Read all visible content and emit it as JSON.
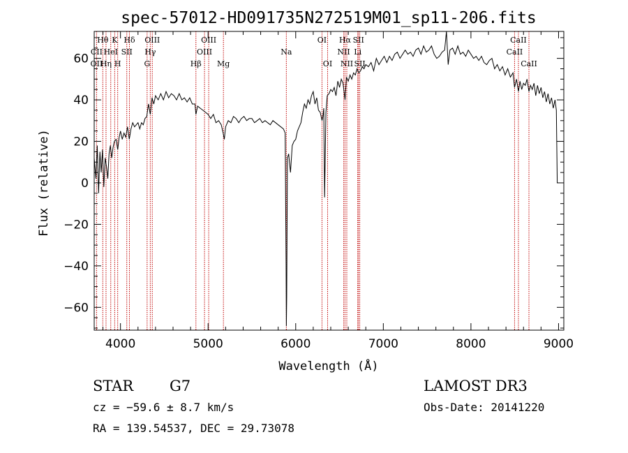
{
  "chart_data": {
    "type": "line",
    "title": "spec-57012-HD091735N272519M01_sp11-206.fits",
    "xlabel": "Wavelength (Å)",
    "ylabel": "Flux (relative)",
    "xlim": [
      3700,
      9060
    ],
    "ylim": [
      -71,
      73
    ],
    "x_ticks": [
      4000,
      5000,
      6000,
      7000,
      8000,
      9000
    ],
    "y_ticks": [
      -60,
      -40,
      -20,
      0,
      20,
      40,
      60
    ],
    "grid": false,
    "series": [
      {
        "points": [
          [
            3700,
            12
          ],
          [
            3720,
            2
          ],
          [
            3735,
            18
          ],
          [
            3750,
            -5
          ],
          [
            3765,
            15
          ],
          [
            3780,
            5
          ],
          [
            3795,
            16
          ],
          [
            3810,
            -2
          ],
          [
            3825,
            12
          ],
          [
            3840,
            8
          ],
          [
            3855,
            2
          ],
          [
            3870,
            14
          ],
          [
            3885,
            18
          ],
          [
            3900,
            12
          ],
          [
            3915,
            17
          ],
          [
            3930,
            20
          ],
          [
            3950,
            21
          ],
          [
            3968,
            16
          ],
          [
            3985,
            22
          ],
          [
            4000,
            25
          ],
          [
            4020,
            21
          ],
          [
            4040,
            24
          ],
          [
            4060,
            22
          ],
          [
            4080,
            27
          ],
          [
            4101,
            21
          ],
          [
            4120,
            26
          ],
          [
            4140,
            29
          ],
          [
            4160,
            27
          ],
          [
            4180,
            28
          ],
          [
            4200,
            29
          ],
          [
            4220,
            26
          ],
          [
            4240,
            29
          ],
          [
            4260,
            28
          ],
          [
            4280,
            31
          ],
          [
            4300,
            32
          ],
          [
            4320,
            38
          ],
          [
            4340,
            33
          ],
          [
            4360,
            41
          ],
          [
            4380,
            38
          ],
          [
            4400,
            42
          ],
          [
            4430,
            40
          ],
          [
            4460,
            43
          ],
          [
            4490,
            40
          ],
          [
            4520,
            44
          ],
          [
            4550,
            41
          ],
          [
            4580,
            43
          ],
          [
            4610,
            42
          ],
          [
            4640,
            40
          ],
          [
            4670,
            43
          ],
          [
            4700,
            40
          ],
          [
            4730,
            41
          ],
          [
            4760,
            39
          ],
          [
            4790,
            41
          ],
          [
            4820,
            38
          ],
          [
            4850,
            38
          ],
          [
            4861,
            33
          ],
          [
            4880,
            37
          ],
          [
            4910,
            36
          ],
          [
            4940,
            35
          ],
          [
            4970,
            34
          ],
          [
            5000,
            33
          ],
          [
            5030,
            31
          ],
          [
            5060,
            33
          ],
          [
            5090,
            29
          ],
          [
            5120,
            30
          ],
          [
            5150,
            28
          ],
          [
            5172,
            24
          ],
          [
            5185,
            21
          ],
          [
            5200,
            27
          ],
          [
            5230,
            30
          ],
          [
            5260,
            29
          ],
          [
            5290,
            32
          ],
          [
            5320,
            31
          ],
          [
            5350,
            29
          ],
          [
            5380,
            31
          ],
          [
            5410,
            32
          ],
          [
            5440,
            30
          ],
          [
            5470,
            31
          ],
          [
            5500,
            31
          ],
          [
            5530,
            29
          ],
          [
            5560,
            30
          ],
          [
            5590,
            31
          ],
          [
            5620,
            29
          ],
          [
            5650,
            30
          ],
          [
            5680,
            29
          ],
          [
            5710,
            28
          ],
          [
            5740,
            30
          ],
          [
            5770,
            29
          ],
          [
            5800,
            28
          ],
          [
            5830,
            27
          ],
          [
            5860,
            26
          ],
          [
            5880,
            24
          ],
          [
            5890,
            -40
          ],
          [
            5893,
            -69
          ],
          [
            5897,
            -55
          ],
          [
            5905,
            12
          ],
          [
            5920,
            14
          ],
          [
            5940,
            5
          ],
          [
            5960,
            18
          ],
          [
            5980,
            20
          ],
          [
            6000,
            21
          ],
          [
            6020,
            25
          ],
          [
            6040,
            27
          ],
          [
            6060,
            29
          ],
          [
            6080,
            34
          ],
          [
            6100,
            38
          ],
          [
            6120,
            36
          ],
          [
            6140,
            40
          ],
          [
            6160,
            38
          ],
          [
            6180,
            42
          ],
          [
            6200,
            44
          ],
          [
            6220,
            38
          ],
          [
            6240,
            41
          ],
          [
            6260,
            35
          ],
          [
            6280,
            34
          ],
          [
            6300,
            30
          ],
          [
            6310,
            32
          ],
          [
            6320,
            36
          ],
          [
            6330,
            -7
          ],
          [
            6345,
            34
          ],
          [
            6360,
            42
          ],
          [
            6380,
            43
          ],
          [
            6400,
            45
          ],
          [
            6420,
            44
          ],
          [
            6440,
            46
          ],
          [
            6460,
            42
          ],
          [
            6480,
            49
          ],
          [
            6500,
            46
          ],
          [
            6520,
            50
          ],
          [
            6540,
            48
          ],
          [
            6563,
            40
          ],
          [
            6580,
            51
          ],
          [
            6600,
            49
          ],
          [
            6620,
            52
          ],
          [
            6640,
            50
          ],
          [
            6660,
            53
          ],
          [
            6680,
            52
          ],
          [
            6700,
            55
          ],
          [
            6720,
            53
          ],
          [
            6740,
            54
          ],
          [
            6760,
            56
          ],
          [
            6780,
            55
          ],
          [
            6800,
            57
          ],
          [
            6830,
            56
          ],
          [
            6860,
            58
          ],
          [
            6890,
            54
          ],
          [
            6920,
            60
          ],
          [
            6950,
            57
          ],
          [
            6980,
            59
          ],
          [
            7010,
            61
          ],
          [
            7040,
            58
          ],
          [
            7070,
            61
          ],
          [
            7100,
            59
          ],
          [
            7130,
            62
          ],
          [
            7160,
            63
          ],
          [
            7190,
            60
          ],
          [
            7220,
            62
          ],
          [
            7250,
            64
          ],
          [
            7280,
            62
          ],
          [
            7310,
            63
          ],
          [
            7340,
            61
          ],
          [
            7370,
            64
          ],
          [
            7400,
            65
          ],
          [
            7430,
            62
          ],
          [
            7460,
            66
          ],
          [
            7490,
            63
          ],
          [
            7520,
            64
          ],
          [
            7550,
            66
          ],
          [
            7580,
            62
          ],
          [
            7610,
            60
          ],
          [
            7640,
            61
          ],
          [
            7670,
            63
          ],
          [
            7700,
            64
          ],
          [
            7720,
            73
          ],
          [
            7740,
            57
          ],
          [
            7760,
            64
          ],
          [
            7790,
            65
          ],
          [
            7820,
            62
          ],
          [
            7850,
            66
          ],
          [
            7880,
            62
          ],
          [
            7910,
            63
          ],
          [
            7940,
            61
          ],
          [
            7970,
            64
          ],
          [
            8000,
            62
          ],
          [
            8030,
            60
          ],
          [
            8060,
            61
          ],
          [
            8090,
            59
          ],
          [
            8120,
            61
          ],
          [
            8150,
            58
          ],
          [
            8180,
            57
          ],
          [
            8210,
            59
          ],
          [
            8240,
            60
          ],
          [
            8270,
            55
          ],
          [
            8300,
            57
          ],
          [
            8330,
            54
          ],
          [
            8360,
            56
          ],
          [
            8390,
            52
          ],
          [
            8420,
            55
          ],
          [
            8450,
            51
          ],
          [
            8480,
            53
          ],
          [
            8498,
            46
          ],
          [
            8520,
            50
          ],
          [
            8542,
            44
          ],
          [
            8560,
            49
          ],
          [
            8580,
            45
          ],
          [
            8600,
            48
          ],
          [
            8620,
            47
          ],
          [
            8640,
            50
          ],
          [
            8662,
            44
          ],
          [
            8680,
            47
          ],
          [
            8700,
            45
          ],
          [
            8720,
            48
          ],
          [
            8740,
            42
          ],
          [
            8760,
            47
          ],
          [
            8780,
            43
          ],
          [
            8800,
            46
          ],
          [
            8820,
            41
          ],
          [
            8840,
            44
          ],
          [
            8860,
            39
          ],
          [
            8880,
            43
          ],
          [
            8900,
            38
          ],
          [
            8920,
            41
          ],
          [
            8940,
            36
          ],
          [
            8960,
            40
          ],
          [
            8975,
            35
          ],
          [
            8985,
            0
          ]
        ]
      }
    ],
    "spectral_lines": [
      {
        "label": "Hθ",
        "x": 3798,
        "row": 1
      },
      {
        "label": "CII",
        "x": 3727,
        "row": 2
      },
      {
        "label": "OII",
        "x": 3727,
        "row": 3
      },
      {
        "label": "K",
        "x": 3934,
        "row": 1
      },
      {
        "label": "HeI",
        "x": 3889,
        "row": 2
      },
      {
        "label": "Hη",
        "x": 3835,
        "row": 3
      },
      {
        "label": "Hδ",
        "x": 4102,
        "row": 1
      },
      {
        "label": "SII",
        "x": 4072,
        "row": 2
      },
      {
        "label": "H",
        "x": 3968,
        "row": 3
      },
      {
        "label": "OIII",
        "x": 4363,
        "row": 1
      },
      {
        "label": "Hγ",
        "x": 4340,
        "row": 2
      },
      {
        "label": "G",
        "x": 4304,
        "row": 3
      },
      {
        "label": "OIII",
        "x": 5007,
        "row": 1
      },
      {
        "label": "OIII",
        "x": 4959,
        "row": 2
      },
      {
        "label": "Hβ",
        "x": 4861,
        "row": 3
      },
      {
        "label": "Mg",
        "x": 5175,
        "row": 3
      },
      {
        "label": "Na",
        "x": 5893,
        "row": 2
      },
      {
        "label": "OI",
        "x": 6300,
        "row": 1
      },
      {
        "label": "OI",
        "x": 6364,
        "row": 3
      },
      {
        "label": "Hα",
        "x": 6563,
        "row": 1
      },
      {
        "label": "SII",
        "x": 6716,
        "row": 1
      },
      {
        "label": "NII",
        "x": 6548,
        "row": 2
      },
      {
        "label": "Li",
        "x": 6708,
        "row": 2
      },
      {
        "label": "NII",
        "x": 6583,
        "row": 3
      },
      {
        "label": "SII",
        "x": 6731,
        "row": 3
      },
      {
        "label": "CaII",
        "x": 8542,
        "row": 1
      },
      {
        "label": "CaII",
        "x": 8498,
        "row": 2
      },
      {
        "label": "CaII",
        "x": 8662,
        "row": 3
      }
    ]
  },
  "info": {
    "obj_class": "STAR",
    "subclass": "G7",
    "survey": "LAMOST DR3",
    "cz": "cz = −59.6 ± 8.7 km/s",
    "obs_date": "Obs-Date: 20141220",
    "coords": "RA = 139.54537, DEC =  29.73078"
  }
}
